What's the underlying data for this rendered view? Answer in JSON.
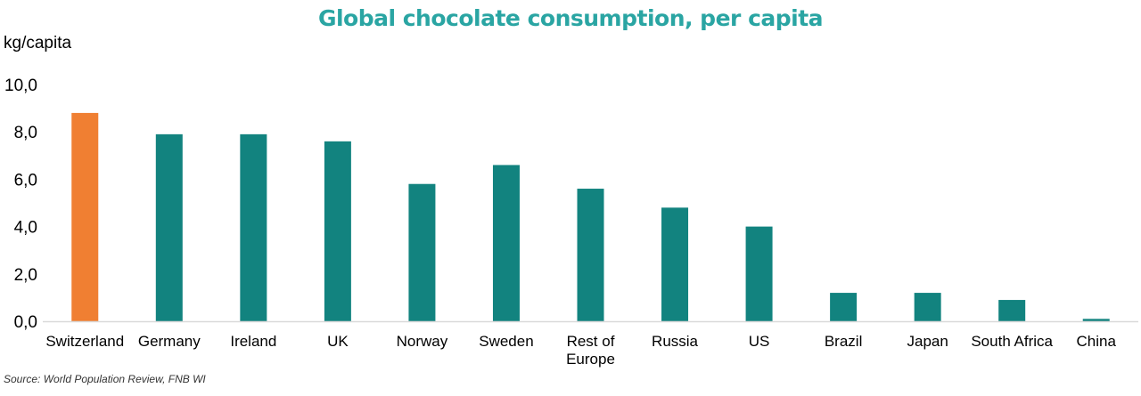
{
  "chart_data": {
    "type": "bar",
    "title": "Global chocolate consumption, per capita",
    "ylabel": "kg/capita",
    "xlabel": "",
    "ylim": [
      0,
      10
    ],
    "yticks": [
      "0,0",
      "2,0",
      "4,0",
      "6,0",
      "8,0",
      "10,0"
    ],
    "categories": [
      [
        "Switzerland"
      ],
      [
        "Germany"
      ],
      [
        "Ireland"
      ],
      [
        "UK"
      ],
      [
        "Norway"
      ],
      [
        "Sweden"
      ],
      [
        "Rest of",
        "Europe"
      ],
      [
        "Russia"
      ],
      [
        "US"
      ],
      [
        "Brazil"
      ],
      [
        "Japan"
      ],
      [
        "South Africa"
      ],
      [
        "China"
      ]
    ],
    "values": [
      8.8,
      7.9,
      7.9,
      7.6,
      5.8,
      6.6,
      5.6,
      4.8,
      4.0,
      1.2,
      1.2,
      0.9,
      0.1
    ],
    "highlight_index": 0,
    "colors": {
      "highlight": "#f07f32",
      "default": "#12837f",
      "axis": "#d9d9d9"
    },
    "grid": false,
    "legend": "none",
    "source": "Source: World Population Review, FNB WI"
  }
}
